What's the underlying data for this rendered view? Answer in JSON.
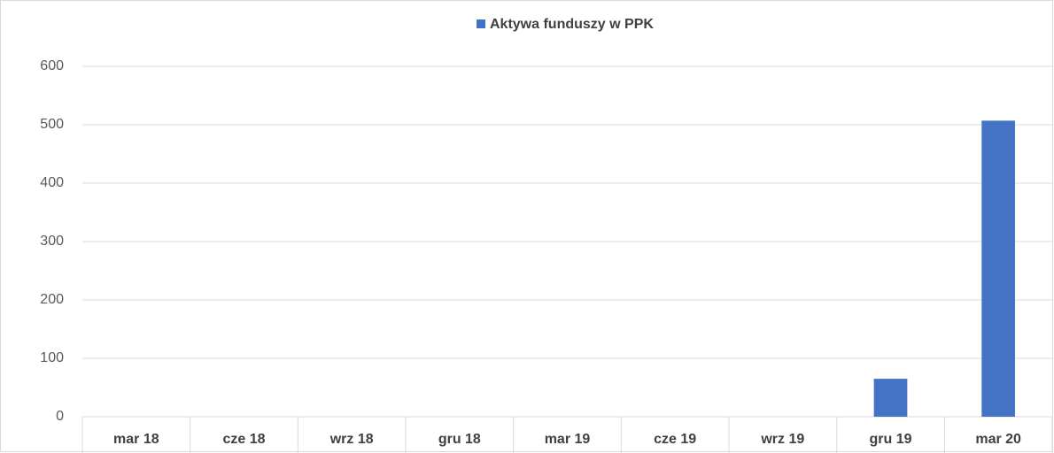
{
  "chart_data": {
    "type": "bar",
    "categories": [
      "mar 18",
      "cze 18",
      "wrz 18",
      "gru 18",
      "mar 19",
      "cze 19",
      "wrz 19",
      "gru 19",
      "mar 20"
    ],
    "series": [
      {
        "name": "Aktywa funduszy w PPK",
        "color": "#4472c4",
        "values": [
          0,
          0,
          0,
          0,
          0,
          0,
          0,
          65,
          507
        ]
      }
    ],
    "ylim": [
      0,
      600
    ],
    "yticks": [
      0,
      100,
      200,
      300,
      400,
      500,
      600
    ],
    "grid": true,
    "legend": "top"
  }
}
